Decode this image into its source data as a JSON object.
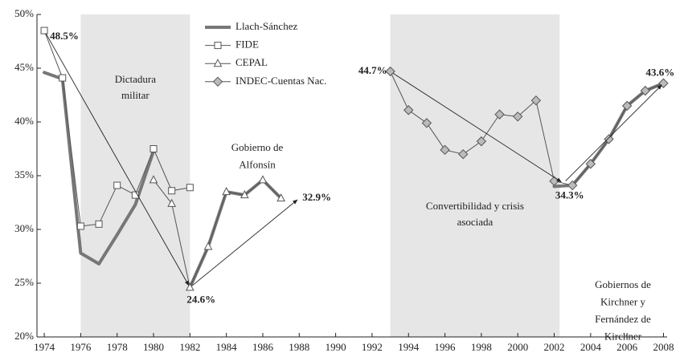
{
  "chart_data": {
    "type": "line",
    "x": [
      1974,
      1975,
      1976,
      1977,
      1978,
      1979,
      1980,
      1981,
      1982,
      1983,
      1984,
      1985,
      1986,
      1987,
      1988,
      1989,
      1990,
      1991,
      1992,
      1993,
      1994,
      1995,
      1996,
      1997,
      1998,
      1999,
      2000,
      2001,
      2002,
      2003,
      2004,
      2005,
      2006,
      2007,
      2008
    ],
    "series": [
      {
        "name": "Llach-Sánchez",
        "color": "#777777",
        "width": 4,
        "marker": null,
        "values": [
          44.6,
          44.0,
          27.8,
          26.8,
          29.5,
          32.3,
          37.3,
          null,
          24.6,
          28.4,
          33.5,
          33.2,
          34.6,
          32.9,
          null,
          null,
          null,
          null,
          null,
          null,
          null,
          null,
          null,
          null,
          null,
          null,
          null,
          null,
          34.0,
          34.1,
          36.1,
          38.4,
          41.5,
          42.9,
          43.6
        ]
      },
      {
        "name": "FIDE",
        "color": "#555555",
        "width": 1,
        "marker": "square",
        "marker_fill": "#ffffff",
        "values": [
          48.5,
          44.1,
          30.3,
          30.5,
          34.1,
          33.2,
          37.5,
          33.6,
          33.9,
          null,
          null,
          null,
          null,
          null,
          null,
          null,
          null,
          null,
          null,
          null,
          null,
          null,
          null,
          null,
          null,
          null,
          null,
          null,
          null,
          null,
          null,
          null,
          null,
          null,
          null
        ]
      },
      {
        "name": "CEPAL",
        "color": "#555555",
        "width": 1,
        "marker": "triangle",
        "marker_fill": "#ffffff",
        "values": [
          null,
          null,
          null,
          null,
          null,
          null,
          34.6,
          32.4,
          24.6,
          28.4,
          33.5,
          33.2,
          34.6,
          32.9,
          null,
          null,
          null,
          null,
          null,
          null,
          null,
          null,
          null,
          null,
          null,
          null,
          null,
          null,
          null,
          null,
          null,
          null,
          null,
          null,
          null
        ]
      },
      {
        "name": "INDEC-Cuentas Nac.",
        "color": "#555555",
        "width": 1,
        "marker": "diamond",
        "marker_fill": "#bbbbbb",
        "values": [
          null,
          null,
          null,
          null,
          null,
          null,
          null,
          null,
          null,
          null,
          null,
          null,
          null,
          null,
          null,
          null,
          null,
          null,
          null,
          44.7,
          41.1,
          39.9,
          37.4,
          37.0,
          38.2,
          40.7,
          40.5,
          42.0,
          34.5,
          34.1,
          36.1,
          38.4,
          41.5,
          42.9,
          43.6
        ]
      }
    ],
    "xlim": [
      1973.6,
      2008.2
    ],
    "ylim": [
      20,
      50
    ],
    "xticks": [
      1974,
      1976,
      1978,
      1980,
      1982,
      1984,
      1986,
      1988,
      1990,
      1992,
      1994,
      1996,
      1998,
      2000,
      2002,
      2004,
      2006,
      2008
    ],
    "yticks": [
      {
        "value": 20,
        "label": "20%"
      },
      {
        "value": 25,
        "label": "25%"
      },
      {
        "value": 30,
        "label": "30%"
      },
      {
        "value": 35,
        "label": "35%"
      },
      {
        "value": 40,
        "label": "40%"
      },
      {
        "value": 45,
        "label": "45%"
      },
      {
        "value": 50,
        "label": "50%"
      }
    ],
    "shade_color": "#e6e6e6",
    "shaded_periods": [
      {
        "start": 1976,
        "end": 1982,
        "label": [
          "Dictadura",
          "militar"
        ]
      },
      {
        "start": 1993,
        "end": 2002.3,
        "label": [
          "Convertibilidad y crisis",
          "asociada"
        ]
      }
    ],
    "annotations": [
      {
        "text": [
          "Gobierno de",
          "Alfonsín"
        ]
      },
      {
        "text": [
          "Gobiernos de",
          "Kirchner y",
          "Fernández de",
          "Kirchner"
        ]
      }
    ],
    "point_labels": [
      {
        "x": 1974,
        "value": 48.5,
        "label": "48.5%"
      },
      {
        "x": 1982,
        "value": 24.6,
        "label": "24.6%"
      },
      {
        "x": 1988,
        "value": 32.9,
        "label": "32.9%"
      },
      {
        "x": 1993,
        "value": 44.7,
        "label": "44.7%"
      },
      {
        "x": 2002.5,
        "value": 34.3,
        "label": "34.3%"
      },
      {
        "x": 2008,
        "value": 43.6,
        "label": "43.6%"
      }
    ]
  }
}
